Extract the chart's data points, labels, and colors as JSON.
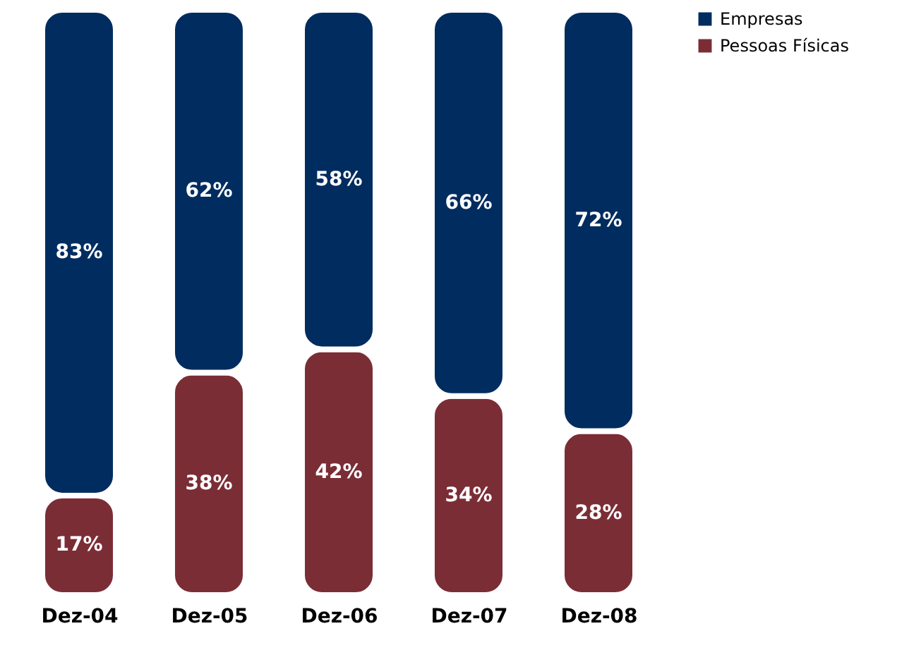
{
  "chart_data": {
    "type": "bar",
    "stacked": true,
    "categories": [
      "Dez-04",
      "Dez-05",
      "Dez-06",
      "Dez-07",
      "Dez-08"
    ],
    "series": [
      {
        "name": "Pessoas Físicas",
        "color": "#7b2d35",
        "values": [
          17,
          38,
          42,
          34,
          28
        ],
        "value_labels": [
          "17%",
          "38%",
          "42%",
          "34%",
          "28%"
        ]
      },
      {
        "name": "Empresas",
        "color": "#002c5f",
        "values": [
          83,
          62,
          58,
          66,
          72
        ],
        "value_labels": [
          "83%",
          "62%",
          "58%",
          "66%",
          "72%"
        ]
      }
    ],
    "legend": "right",
    "grid": false
  }
}
